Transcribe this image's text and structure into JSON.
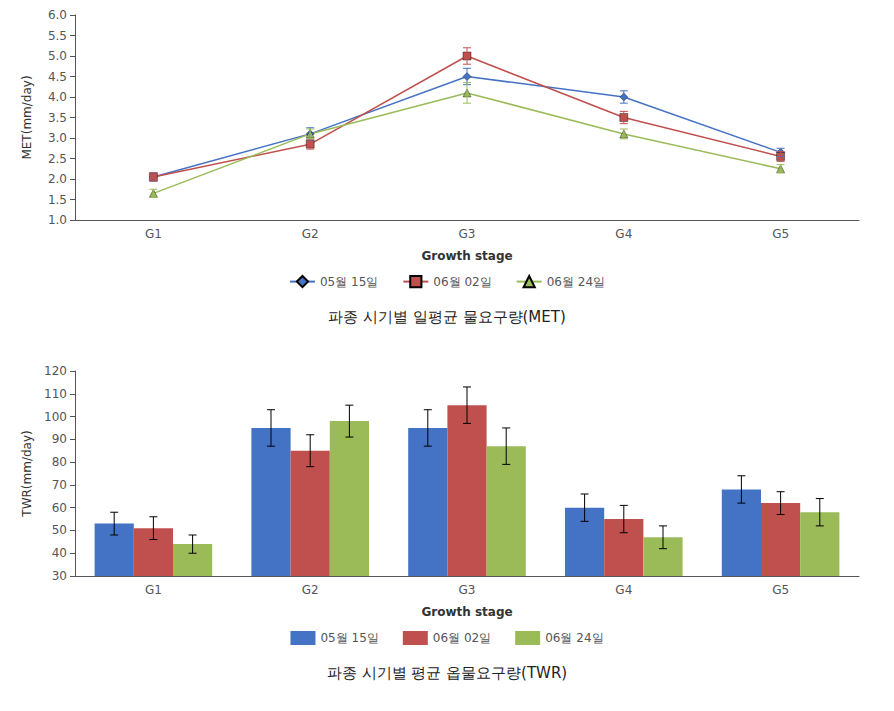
{
  "chart_data": [
    {
      "type": "line",
      "title": "파종 시기별 일평균 물요구량(MET)",
      "xlabel": "Growth stage",
      "ylabel": "MET(mm/day)",
      "categories": [
        "G1",
        "G2",
        "G3",
        "G4",
        "G5"
      ],
      "series": [
        {
          "name": "05월 15일",
          "color": "#4472C4",
          "marker": "diamond",
          "values": [
            2.05,
            3.1,
            4.5,
            4.0,
            2.65
          ],
          "errors": [
            0.1,
            0.15,
            0.2,
            0.15,
            0.1
          ]
        },
        {
          "name": "06월 02일",
          "color": "#C0504D",
          "marker": "square",
          "values": [
            2.05,
            2.85,
            5.0,
            3.5,
            2.55
          ],
          "errors": [
            0.1,
            0.12,
            0.2,
            0.15,
            0.12
          ]
        },
        {
          "name": "06월 24일",
          "color": "#9BBB59",
          "marker": "triangle",
          "values": [
            1.65,
            3.1,
            4.1,
            3.1,
            2.25
          ],
          "errors": [
            0.1,
            0.12,
            0.25,
            0.12,
            0.1
          ]
        }
      ],
      "ylim": [
        1.0,
        6.0
      ],
      "yticks": [
        {
          "value": 1,
          "label": "1.0"
        },
        1.5,
        {
          "value": 2,
          "label": "2.0"
        },
        2.5,
        {
          "value": 3,
          "label": "3.0"
        },
        3.5,
        {
          "value": 4,
          "label": "4.0"
        },
        4.5,
        {
          "value": 5,
          "label": "5.0"
        },
        5.5,
        {
          "value": 6,
          "label": "6.0"
        }
      ],
      "grid": false,
      "legend": "bottom"
    },
    {
      "type": "bar",
      "title": "파종 시기별 평균 옵물요구량(TWR)",
      "xlabel": "Growth stage",
      "ylabel": "TWR(mm/day)",
      "categories": [
        "G1",
        "G2",
        "G3",
        "G4",
        "G5"
      ],
      "series": [
        {
          "name": "05월 15일",
          "color": "#4472C4",
          "values": [
            53,
            95,
            95,
            60,
            68
          ],
          "errors": [
            5,
            8,
            8,
            6,
            6
          ]
        },
        {
          "name": "06월 02일",
          "color": "#C0504D",
          "values": [
            51,
            85,
            105,
            55,
            62
          ],
          "errors": [
            5,
            7,
            8,
            6,
            5
          ]
        },
        {
          "name": "06월 24일",
          "color": "#9BBB59",
          "values": [
            44,
            98,
            87,
            47,
            58
          ],
          "errors": [
            4,
            7,
            8,
            5,
            6
          ]
        }
      ],
      "ylim": [
        30,
        120
      ],
      "yticks": [
        30,
        40,
        50,
        60,
        70,
        80,
        90,
        100,
        110,
        120
      ],
      "grid": false,
      "legend": "bottom"
    }
  ]
}
